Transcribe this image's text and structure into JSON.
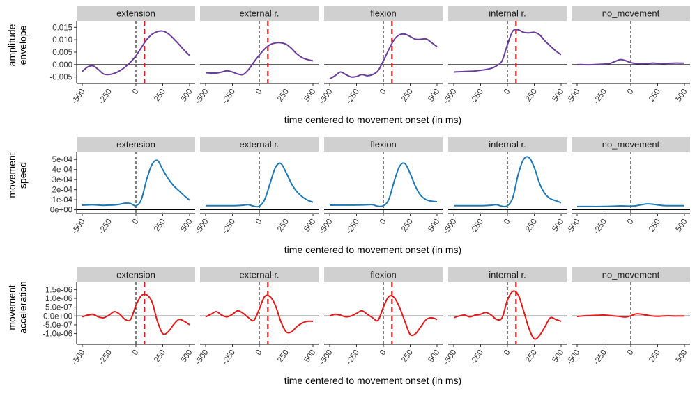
{
  "figure": {
    "x_axis_title": "time centered to movement onset (in ms)",
    "colors": {
      "strip_bg": "#d0d0d0",
      "amplitude": "#6a3d9a",
      "speed": "#1f78b4",
      "acceleration": "#e31a1c",
      "red_dashed": "#e31a1c"
    }
  },
  "chart_data": [
    {
      "type": "line",
      "ylabel": [
        "amplitude",
        "envelope"
      ],
      "xlabel": "time centered to movement onset (in ms)",
      "panels": [
        "extension",
        "external r.",
        "flexion",
        "internal r.",
        "no_movement"
      ],
      "xlim": [
        -500,
        500
      ],
      "x_ticks": [
        -500,
        -250,
        0,
        250,
        500
      ],
      "ylim": [
        -0.0065,
        0.0165
      ],
      "y_ticks": [
        -0.005,
        0.0,
        0.005,
        0.01,
        0.015
      ],
      "y_tick_labels": [
        "-0.005",
        "0.000",
        "0.005",
        "0.010",
        "0.015"
      ],
      "color": "#6a3d9a",
      "hline": 0,
      "vline_onset": 0,
      "red_vlines": [
        80,
        80,
        80,
        80,
        null
      ],
      "series": [
        {
          "x": [
            -500,
            -450,
            -400,
            -350,
            -300,
            -250,
            -200,
            -150,
            -100,
            -50,
            0,
            50,
            100,
            150,
            200,
            250,
            300,
            350,
            400,
            450,
            500
          ],
          "y": [
            -0.0028,
            -0.001,
            -0.0005,
            -0.002,
            -0.0038,
            -0.004,
            -0.0035,
            -0.0025,
            -0.001,
            0.001,
            0.0035,
            0.0068,
            0.01,
            0.0122,
            0.0133,
            0.0135,
            0.0125,
            0.0105,
            0.0082,
            0.0058,
            0.0037
          ]
        },
        {
          "x": [
            -500,
            -450,
            -400,
            -350,
            -300,
            -250,
            -200,
            -150,
            -100,
            -50,
            0,
            50,
            100,
            150,
            200,
            250,
            300,
            350,
            400,
            450,
            500
          ],
          "y": [
            -0.0033,
            -0.0034,
            -0.0034,
            -0.003,
            -0.0025,
            -0.003,
            -0.0038,
            -0.004,
            -0.002,
            0.001,
            0.0038,
            0.0063,
            0.008,
            0.0087,
            0.0088,
            0.0082,
            0.0065,
            0.0043,
            0.0028,
            0.002,
            0.0015
          ]
        },
        {
          "x": [
            -500,
            -450,
            -400,
            -350,
            -300,
            -250,
            -200,
            -150,
            -100,
            -50,
            0,
            50,
            100,
            150,
            200,
            250,
            300,
            350,
            400,
            450,
            500
          ],
          "y": [
            -0.0058,
            -0.0045,
            -0.003,
            -0.004,
            -0.005,
            -0.0048,
            -0.004,
            -0.0045,
            -0.004,
            -0.0025,
            0.0015,
            0.006,
            0.01,
            0.012,
            0.0123,
            0.0113,
            0.0102,
            0.0102,
            0.0103,
            0.0088,
            0.0072
          ]
        },
        {
          "x": [
            -500,
            -450,
            -400,
            -350,
            -300,
            -250,
            -200,
            -150,
            -100,
            -50,
            0,
            50,
            100,
            150,
            200,
            250,
            300,
            350,
            400,
            450,
            500
          ],
          "y": [
            -0.003,
            -0.0029,
            -0.0028,
            -0.0027,
            -0.0026,
            -0.0023,
            -0.002,
            -0.0015,
            -0.0005,
            0.0015,
            0.008,
            0.0135,
            0.014,
            0.013,
            0.0128,
            0.013,
            0.012,
            0.0095,
            0.0075,
            0.0055,
            0.004
          ]
        },
        {
          "x": [
            -500,
            -450,
            -400,
            -350,
            -300,
            -250,
            -200,
            -150,
            -100,
            -50,
            0,
            50,
            100,
            150,
            200,
            250,
            300,
            350,
            400,
            450,
            500
          ],
          "y": [
            0.0,
            0.0,
            -0.0001,
            0.0,
            0.0001,
            0.0002,
            0.0004,
            0.0012,
            0.002,
            0.0016,
            0.0008,
            0.0004,
            0.0003,
            0.0004,
            0.0006,
            0.0005,
            0.0004,
            0.0005,
            0.0006,
            0.0006,
            0.0006
          ]
        }
      ]
    },
    {
      "type": "line",
      "ylabel": [
        "movement",
        "speed"
      ],
      "xlabel": "time centered to movement onset (in ms)",
      "panels": [
        "extension",
        "external r.",
        "flexion",
        "internal r.",
        "no_movement"
      ],
      "xlim": [
        -500,
        500
      ],
      "x_ticks": [
        -500,
        -250,
        0,
        250,
        500
      ],
      "ylim": [
        -1e-05,
        0.00055
      ],
      "y_ticks": [
        0,
        0.0001,
        0.0002,
        0.0003,
        0.0004,
        0.0005
      ],
      "y_tick_labels": [
        "0e+00",
        "1e-04",
        "2e-04",
        "3e-04",
        "4e-04",
        "5e-04"
      ],
      "color": "#1f78b4",
      "hline": 0,
      "vline_onset": 0,
      "red_vlines": [
        null,
        null,
        null,
        null,
        null
      ],
      "series": [
        {
          "x": [
            -500,
            -450,
            -400,
            -350,
            -300,
            -250,
            -200,
            -150,
            -100,
            -50,
            0,
            50,
            100,
            150,
            200,
            250,
            300,
            350,
            400,
            450,
            500
          ],
          "y": [
            4.5e-05,
            4.8e-05,
            5e-05,
            4.6e-05,
            4.4e-05,
            4.6e-05,
            4.8e-05,
            5.5e-05,
            6.5e-05,
            6.2e-05,
            4e-05,
            0.0001,
            0.0003,
            0.00045,
            0.00049,
            0.0004,
            0.00031,
            0.00024,
            0.00019,
            0.00014,
            9.5e-05
          ]
        },
        {
          "x": [
            -500,
            -450,
            -400,
            -350,
            -300,
            -250,
            -200,
            -150,
            -100,
            -50,
            0,
            50,
            100,
            150,
            200,
            250,
            300,
            350,
            400,
            450,
            500
          ],
          "y": [
            4e-05,
            4e-05,
            4e-05,
            4e-05,
            4e-05,
            4e-05,
            4.2e-05,
            4.5e-05,
            5e-05,
            3.5e-05,
            3.5e-05,
            0.0001,
            0.00026,
            0.00042,
            0.00046,
            0.00037,
            0.00026,
            0.00018,
            0.00013,
            9.5e-05,
            7.5e-05
          ]
        },
        {
          "x": [
            -500,
            -450,
            -400,
            -350,
            -300,
            -250,
            -200,
            -150,
            -100,
            -50,
            0,
            50,
            100,
            150,
            200,
            250,
            300,
            350,
            400,
            450,
            500
          ],
          "y": [
            4.5e-05,
            4.6e-05,
            4.6e-05,
            4.6e-05,
            4.6e-05,
            4.7e-05,
            4.8e-05,
            5e-05,
            5e-05,
            3.5e-05,
            4e-05,
            0.0001,
            0.00028,
            0.00043,
            0.00046,
            0.00036,
            0.00023,
            0.00014,
            0.0001,
            8.5e-05,
            8e-05
          ]
        },
        {
          "x": [
            -500,
            -450,
            -400,
            -350,
            -300,
            -250,
            -200,
            -150,
            -100,
            -50,
            0,
            50,
            100,
            150,
            200,
            250,
            300,
            350,
            400,
            450,
            500
          ],
          "y": [
            4e-05,
            4e-05,
            4e-05,
            4e-05,
            4e-05,
            4e-05,
            4.2e-05,
            4.5e-05,
            5e-05,
            3.5e-05,
            4e-05,
            0.00012,
            0.00035,
            0.0005,
            0.00052,
            0.00042,
            0.00026,
            0.00016,
            0.00011,
            9e-05,
            7e-05
          ]
        },
        {
          "x": [
            -500,
            -450,
            -400,
            -350,
            -300,
            -250,
            -200,
            -150,
            -100,
            -50,
            0,
            50,
            100,
            150,
            200,
            250,
            300,
            350,
            400,
            450,
            500
          ],
          "y": [
            3.2e-05,
            3.2e-05,
            3.2e-05,
            3.2e-05,
            3.2e-05,
            3.3e-05,
            3.4e-05,
            3.6e-05,
            3.8e-05,
            3.7e-05,
            3.6e-05,
            4e-05,
            5e-05,
            5.8e-05,
            5.6e-05,
            4.8e-05,
            4.2e-05,
            4e-05,
            4e-05,
            4e-05,
            4e-05
          ]
        }
      ]
    },
    {
      "type": "line",
      "ylabel": [
        "movement",
        "acceleration"
      ],
      "xlabel": "time centered to movement onset (in ms)",
      "panels": [
        "extension",
        "external r.",
        "flexion",
        "internal r.",
        "no_movement"
      ],
      "xlim": [
        -500,
        500
      ],
      "x_ticks": [
        -500,
        -250,
        0,
        250,
        500
      ],
      "ylim": [
        -1.45e-06,
        1.75e-06
      ],
      "y_ticks": [
        -1e-06,
        -5e-07,
        0,
        5e-07,
        1e-06,
        1.5e-06
      ],
      "y_tick_labels": [
        "-1.0e-06",
        "-5.0e-07",
        "0.0e+00",
        "5.0e-07",
        "1.0e-06",
        "1.5e-06"
      ],
      "color": "#e31a1c",
      "hline": 0,
      "vline_onset": 0,
      "red_vlines": [
        80,
        80,
        80,
        80,
        null
      ],
      "series": [
        {
          "x": [
            -500,
            -450,
            -400,
            -350,
            -300,
            -250,
            -200,
            -150,
            -100,
            -50,
            0,
            50,
            100,
            150,
            200,
            250,
            300,
            350,
            400,
            450,
            500
          ],
          "y": [
            -5e-08,
            5e-08,
            1e-07,
            -5e-08,
            -1e-07,
            5e-08,
            2.5e-07,
            1e-07,
            -2e-07,
            -2e-07,
            6e-07,
            1.15e-06,
            1.2e-06,
            8e-07,
            -3e-07,
            -1e-06,
            -9e-07,
            -5e-07,
            -2e-07,
            -3e-07,
            -5e-07
          ]
        },
        {
          "x": [
            -500,
            -450,
            -400,
            -350,
            -300,
            -250,
            -200,
            -150,
            -100,
            -50,
            0,
            50,
            100,
            150,
            200,
            250,
            300,
            350,
            400,
            450,
            500
          ],
          "y": [
            -5e-08,
            1e-07,
            2.5e-07,
            5e-08,
            -5e-08,
            1e-07,
            3e-07,
            1.5e-07,
            -1e-07,
            -2.5e-07,
            4e-07,
            1.1e-06,
            1.1e-06,
            6e-07,
            -3e-07,
            -9e-07,
            -9e-07,
            -6e-07,
            -4e-07,
            -3e-07,
            -3e-07
          ]
        },
        {
          "x": [
            -500,
            -450,
            -400,
            -350,
            -300,
            -250,
            -200,
            -150,
            -100,
            -50,
            0,
            50,
            100,
            150,
            200,
            250,
            300,
            350,
            400,
            450,
            500
          ],
          "y": [
            0,
            1e-07,
            5e-08,
            -5e-08,
            0,
            1.5e-07,
            3e-07,
            1e-07,
            -1e-07,
            -2.5e-07,
            5e-07,
            1.1e-06,
            1.05e-06,
            5e-07,
            -3e-07,
            -1.05e-06,
            -1e-06,
            -6e-07,
            -2e-07,
            -1e-07,
            -2e-07
          ]
        },
        {
          "x": [
            -500,
            -450,
            -400,
            -350,
            -300,
            -250,
            -200,
            -150,
            -100,
            -50,
            0,
            50,
            100,
            150,
            200,
            250,
            300,
            350,
            400,
            450,
            500
          ],
          "y": [
            -1e-07,
            0,
            5e-08,
            -5e-08,
            5e-08,
            1e-07,
            2e-07,
            5e-08,
            -2e-07,
            -1e-07,
            9e-07,
            1.4e-06,
            1.2e-06,
            3e-07,
            -7e-07,
            -1.3e-06,
            -1.1e-06,
            -6e-07,
            -1e-07,
            -2e-07,
            -3e-07
          ]
        },
        {
          "x": [
            -500,
            -450,
            -400,
            -350,
            -300,
            -250,
            -200,
            -150,
            -100,
            -50,
            0,
            50,
            100,
            150,
            200,
            250,
            300,
            350,
            400,
            450,
            500
          ],
          "y": [
            -3e-08,
            0,
            2e-08,
            3e-08,
            4e-08,
            5e-08,
            3e-08,
            0,
            -3e-08,
            -6e-08,
            1e-08,
            1.2e-07,
            1e-07,
            5e-08,
            0,
            -2e-08,
            0,
            1e-08,
            0,
            0,
            0
          ]
        }
      ]
    }
  ]
}
